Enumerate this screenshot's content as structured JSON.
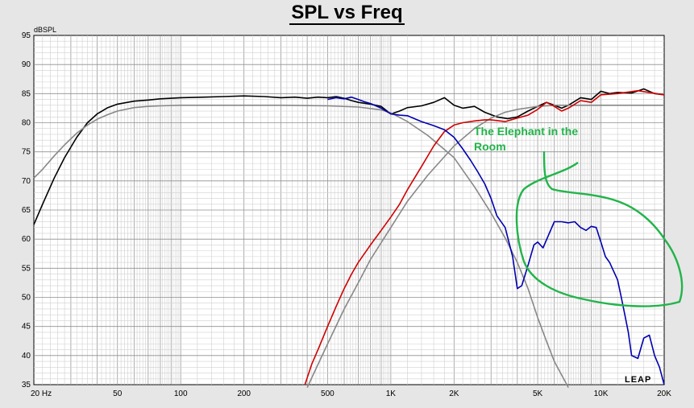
{
  "chart_data": {
    "type": "line",
    "title": "SPL vs Freq",
    "ylabel": "dBSPL",
    "xlabel": "",
    "x_scale": "log",
    "xlim": [
      20,
      20000
    ],
    "ylim": [
      35,
      95
    ],
    "grid": true,
    "x_ticks": [
      {
        "value": 20,
        "label": "20  Hz"
      },
      {
        "value": 50,
        "label": "50"
      },
      {
        "value": 100,
        "label": "100"
      },
      {
        "value": 200,
        "label": "200"
      },
      {
        "value": 500,
        "label": "500"
      },
      {
        "value": 1000,
        "label": "1K"
      },
      {
        "value": 2000,
        "label": "2K"
      },
      {
        "value": 5000,
        "label": "5K"
      },
      {
        "value": 10000,
        "label": "10K"
      },
      {
        "value": 20000,
        "label": "20K"
      }
    ],
    "y_ticks": [
      35,
      40,
      45,
      50,
      55,
      60,
      65,
      70,
      75,
      80,
      85,
      90,
      95
    ],
    "annotation": {
      "text_line1": "The Elephant in the",
      "text_line2": "Room",
      "color": "#22b44a"
    },
    "watermark": "LEAP",
    "series": [
      {
        "color": "#000000",
        "x": [
          20,
          22,
          25,
          28,
          32,
          36,
          40,
          45,
          50,
          60,
          70,
          80,
          100,
          130,
          160,
          200,
          250,
          300,
          350,
          400,
          450,
          500,
          550,
          600,
          650,
          700,
          800,
          900,
          1000,
          1100,
          1200,
          1400,
          1600,
          1800,
          2000,
          2200,
          2500,
          2800,
          3200,
          3600,
          4000,
          4500,
          5000,
          5500,
          6000,
          6500,
          7000,
          8000,
          9000,
          10000,
          11000,
          12000,
          14000,
          16000,
          18000,
          20000
        ],
        "y": [
          62.5,
          66,
          70.5,
          74,
          77.5,
          80,
          81.5,
          82.6,
          83.2,
          83.7,
          83.9,
          84.1,
          84.3,
          84.4,
          84.5,
          84.6,
          84.5,
          84.3,
          84.4,
          84.2,
          84.4,
          84.3,
          84.5,
          84.2,
          83.8,
          83.5,
          83.2,
          82.8,
          81.5,
          82.0,
          82.6,
          82.9,
          83.5,
          84.3,
          83.0,
          82.5,
          82.8,
          81.8,
          81.0,
          80.7,
          81.0,
          82.0,
          82.8,
          83.5,
          83.0,
          82.5,
          83.0,
          84.3,
          84.0,
          85.4,
          85.0,
          85.2,
          85.1,
          85.8,
          85.0,
          84.8
        ]
      },
      {
        "color": "#888888",
        "x": [
          20,
          22,
          25,
          28,
          32,
          36,
          40,
          45,
          50,
          60,
          70,
          80,
          100,
          150,
          200,
          300,
          500,
          700,
          900,
          1000,
          1200,
          1500,
          2000,
          2500,
          3000,
          3500,
          4000,
          4500,
          5000,
          5500,
          6000,
          7000
        ],
        "y": [
          70.5,
          72,
          74.3,
          76.2,
          78.2,
          79.6,
          80.6,
          81.4,
          82.0,
          82.6,
          82.8,
          82.9,
          83.0,
          83.0,
          83.0,
          83.0,
          82.9,
          82.7,
          82.2,
          81.7,
          80.2,
          77.8,
          74.0,
          69.0,
          64.5,
          60.2,
          56.0,
          51.5,
          46.5,
          42.5,
          39.0,
          34.5
        ]
      },
      {
        "color": "#888888",
        "x": [
          400,
          500,
          600,
          700,
          800,
          1000,
          1200,
          1500,
          2000,
          2500,
          3000,
          3500,
          4000,
          5000,
          6000,
          8000,
          10000,
          12000,
          15000,
          20000
        ],
        "y": [
          34.5,
          42.0,
          48.0,
          52.5,
          56.5,
          62.0,
          66.5,
          71.0,
          76.0,
          79.0,
          80.8,
          81.8,
          82.3,
          82.8,
          83.0,
          83.0,
          83.0,
          83.0,
          83.0,
          83.0
        ]
      },
      {
        "color": "#d00000",
        "x": [
          390,
          420,
          450,
          500,
          550,
          600,
          650,
          700,
          800,
          900,
          1000,
          1100,
          1200,
          1400,
          1600,
          1800,
          2000,
          2200,
          2500,
          2800,
          3000,
          3500,
          4000,
          4500,
          5000,
          5500,
          6000,
          6500,
          7000,
          8000,
          9000,
          10000,
          12000,
          15000,
          20000
        ],
        "y": [
          35.0,
          38.5,
          41.0,
          45.0,
          48.5,
          51.5,
          54.0,
          56.0,
          59.0,
          61.5,
          63.8,
          66.0,
          68.5,
          72.5,
          76.0,
          78.5,
          79.6,
          80.0,
          80.3,
          80.5,
          80.5,
          80.2,
          80.8,
          81.3,
          82.3,
          83.5,
          82.8,
          82.0,
          82.5,
          83.8,
          83.5,
          84.8,
          85.0,
          85.5,
          84.8
        ]
      },
      {
        "color": "#0000b0",
        "x": [
          500,
          550,
          600,
          650,
          700,
          750,
          800,
          900,
          1000,
          1100,
          1200,
          1400,
          1600,
          1800,
          2000,
          2200,
          2400,
          2600,
          2800,
          3000,
          3200,
          3500,
          3800,
          4000,
          4200,
          4500,
          4800,
          5000,
          5300,
          5600,
          6000,
          6500,
          7000,
          7500,
          8000,
          8500,
          9000,
          9500,
          10000,
          10500,
          11000,
          12000,
          12500,
          13000,
          13500,
          14000,
          15000,
          16000,
          17000,
          18000,
          19000,
          20000
        ],
        "y": [
          84.0,
          84.3,
          84.1,
          84.4,
          84.0,
          83.6,
          83.3,
          82.5,
          81.5,
          81.3,
          81.2,
          80.2,
          79.5,
          78.8,
          77.5,
          75.5,
          73.5,
          71.5,
          69.5,
          67.0,
          64.0,
          62.0,
          57.0,
          51.5,
          52.0,
          55.5,
          59.0,
          59.5,
          58.5,
          60.5,
          63.0,
          63.0,
          62.8,
          63.0,
          62.0,
          61.5,
          62.2,
          62.0,
          59.5,
          57.0,
          56.0,
          53.0,
          50.0,
          47.0,
          44.0,
          40.0,
          39.5,
          43.0,
          43.5,
          40.0,
          38.0,
          35.0
        ]
      }
    ]
  }
}
